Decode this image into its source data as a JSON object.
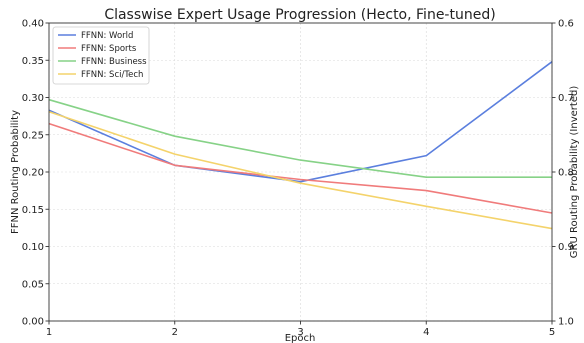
{
  "chart_data": {
    "type": "line",
    "title": "Classwise Expert Usage Progression (Hecto, Fine-tuned)",
    "xlabel": "Epoch",
    "ylabel": "FFNN Routing Probability",
    "y2label": "GRU Routing Probability (Inverted)",
    "x": [
      1,
      2,
      3,
      4,
      5
    ],
    "xticks": [
      "1",
      "2",
      "3",
      "4",
      "5"
    ],
    "ylim": [
      0,
      0.4
    ],
    "yticks": [
      "0.00",
      "0.05",
      "0.10",
      "0.15",
      "0.20",
      "0.25",
      "0.30",
      "0.35",
      "0.40"
    ],
    "y2lim": [
      0.6,
      1.0
    ],
    "y2_inverted": true,
    "y2ticks": [
      "0.6",
      "0.7",
      "0.8",
      "0.9",
      "1.0"
    ],
    "grid": true,
    "legend_position": "top-left",
    "series": [
      {
        "name": "FFNN: World",
        "color": "#5b7fde",
        "values": [
          0.283,
          0.209,
          0.187,
          0.222,
          0.348
        ]
      },
      {
        "name": "FFNN: Sports",
        "color": "#f07b7b",
        "values": [
          0.265,
          0.209,
          0.19,
          0.175,
          0.145
        ]
      },
      {
        "name": "FFNN: Business",
        "color": "#86d287",
        "values": [
          0.297,
          0.248,
          0.216,
          0.193,
          0.193
        ]
      },
      {
        "name": "FFNN: Sci/Tech",
        "color": "#f4d36b",
        "values": [
          0.281,
          0.224,
          0.185,
          0.154,
          0.124
        ]
      }
    ]
  }
}
